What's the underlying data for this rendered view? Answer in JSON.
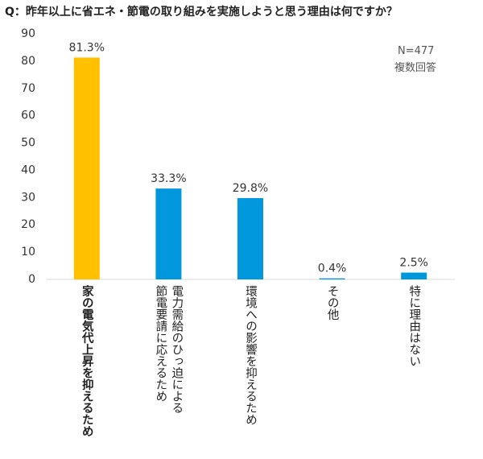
{
  "chart_data": {
    "type": "bar",
    "title": "Q：昨年以上に省エネ・節電の取り組みを実施しようと思う理由は何ですか？",
    "annotations": [
      "N=477",
      "複数回答"
    ],
    "categories": [
      "家の電気代上昇を抑えるため",
      "電力需給のひっ迫による\n節電要請に応えるため",
      "環境への影響を抑えるため",
      "その他",
      "特に理由はない"
    ],
    "values": [
      81.3,
      33.3,
      29.8,
      0.4,
      2.5
    ],
    "value_labels": [
      "81.3%",
      "33.3%",
      "29.8%",
      "0.4%",
      "2.5%"
    ],
    "colors": [
      "#FFC000",
      "#0097DC",
      "#0097DC",
      "#0097DC",
      "#0097DC"
    ],
    "ylim": [
      0,
      90
    ],
    "yticks": [
      0,
      10,
      20,
      30,
      40,
      50,
      60,
      70,
      80,
      90
    ],
    "grid": false
  }
}
